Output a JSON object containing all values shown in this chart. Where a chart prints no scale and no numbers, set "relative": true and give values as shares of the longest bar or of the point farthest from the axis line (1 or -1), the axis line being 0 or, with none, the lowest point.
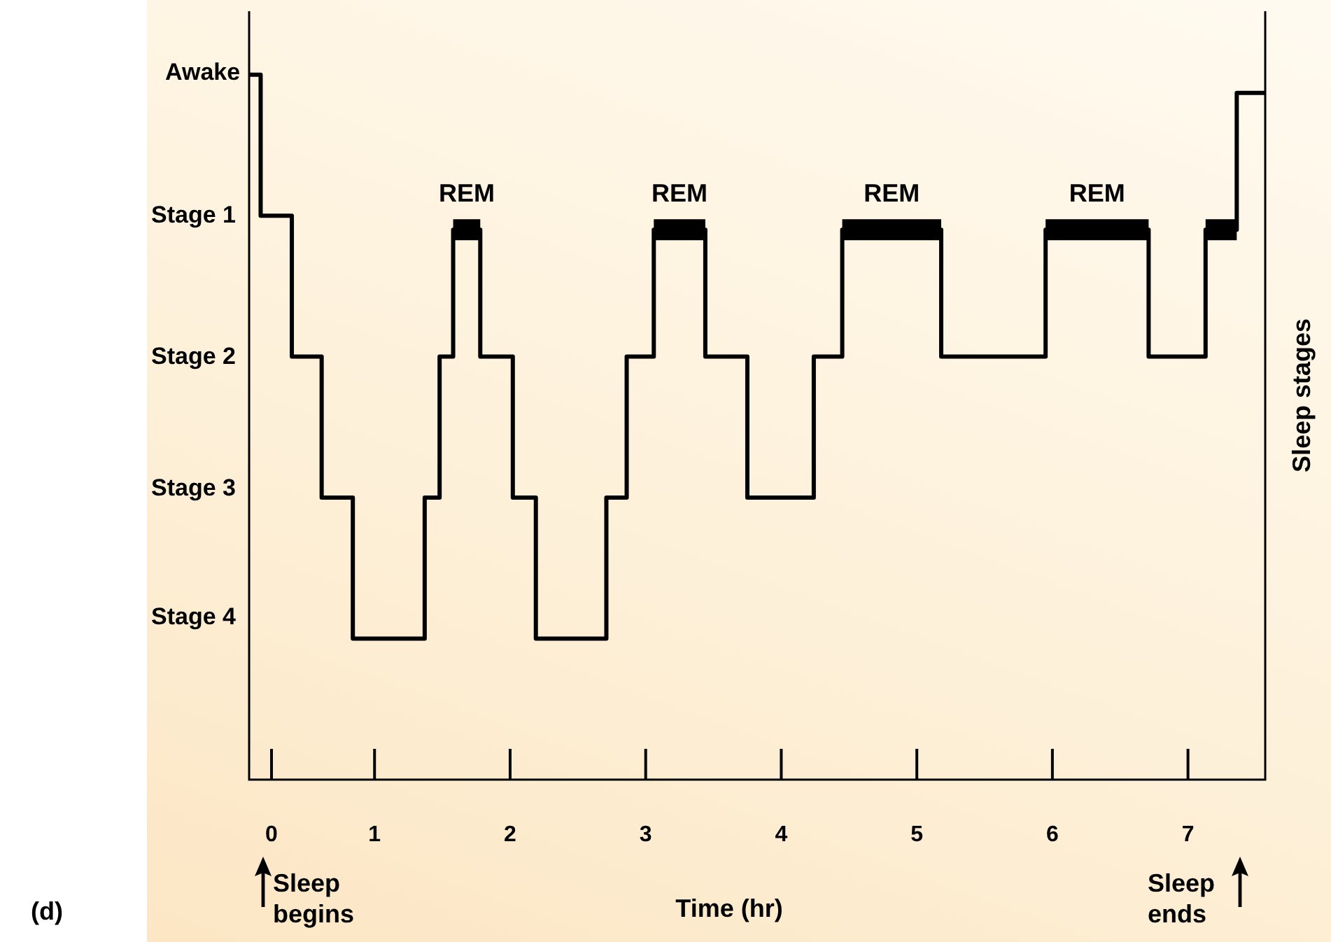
{
  "chart_data": {
    "type": "step",
    "xlabel": "Time (hr)",
    "ylabel": "Sleep stages",
    "marker": "none",
    "relative": true,
    "xlim": [
      0.075,
      7.57
    ],
    "xticks": [
      {
        "value": 0.24,
        "label": "0"
      },
      1,
      2,
      3,
      4,
      5,
      6,
      7
    ],
    "series": [
      {
        "color": "#000000",
        "x": [
          0.075,
          0.16,
          0.39,
          0.61,
          0.84,
          1.37,
          1.48,
          1.58,
          1.78,
          2.02,
          2.19,
          2.71,
          2.86,
          3.06,
          3.44,
          3.75,
          4.24,
          4.45,
          5.18,
          5.95,
          6.71,
          7.13,
          7.36,
          7.57
        ],
        "values": [
          1,
          0.8,
          0.6,
          0.4,
          0.2,
          0.4,
          0.6,
          0.78,
          0.6,
          0.4,
          0.2,
          0.4,
          0.6,
          0.78,
          0.6,
          0.4,
          0.6,
          0.78,
          0.6,
          0.78,
          0.6,
          0.78,
          0.974,
          0.974
        ]
      },
      {
        "color": "#000000",
        "x": [
          1.58,
          1.78,
          2.4,
          3.06,
          3.44,
          3.9,
          4.45,
          5.18,
          5.5,
          5.95,
          6.71,
          6.9,
          7.13,
          7.36
        ],
        "values": [
          0.78,
          0.78,
          null,
          0.78,
          0.78,
          null,
          0.78,
          0.78,
          null,
          0.78,
          0.78,
          null,
          0.78,
          0.78
        ]
      }
    ],
    "annotations": [
      {
        "text": "REM",
        "x": 1.68,
        "y": 0.78
      },
      {
        "text": "REM",
        "x": 3.25,
        "y": 0.78
      },
      {
        "text": "REM",
        "x": 4.815,
        "y": 0.78
      },
      {
        "text": "REM",
        "x": 6.33,
        "y": 0.78
      },
      "Awake",
      "Stage 1",
      "Stage 2",
      "Stage 3",
      "Stage 4",
      "(d)",
      "Sleep begins",
      "Sleep ends"
    ]
  }
}
